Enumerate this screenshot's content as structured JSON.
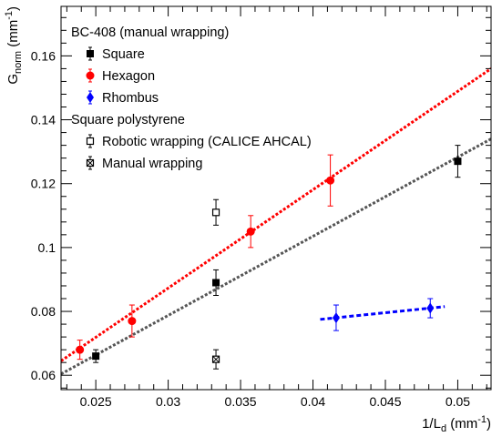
{
  "chart_data": {
    "type": "scatter",
    "xlabel": "1/L",
    "xlabel_sub": "d",
    "xlabel_unit": "(mm",
    "xlabel_unit_sup": "-1",
    "xlabel_unit_close": ")",
    "ylabel": "G",
    "ylabel_sub": "norm",
    "ylabel_unit": "(mm",
    "ylabel_unit_sup": "-1",
    "ylabel_unit_close": ")",
    "xlim": [
      0.0226,
      0.0523
    ],
    "ylim": [
      0.0555,
      0.1755
    ],
    "xticks": [
      0.025,
      0.03,
      0.035,
      0.04,
      0.045,
      0.05
    ],
    "xtick_labels": [
      "0.025",
      "0.03",
      "0.035",
      "0.04",
      "0.045",
      "0.05"
    ],
    "yticks": [
      0.06,
      0.08,
      0.1,
      0.12,
      0.14,
      0.16
    ],
    "ytick_labels": [
      "0.06",
      "0.08",
      "0.1",
      "0.12",
      "0.14",
      "0.16"
    ],
    "grid": false,
    "legend_placement": "top-left",
    "legend_groups": [
      {
        "header": "BC-408 (manual wrapping)",
        "series": [
          "Square",
          "Hexagon",
          "Rhombus"
        ]
      },
      {
        "header": "Square polystyrene",
        "series": [
          "Robotic wrapping (CALICE AHCAL)",
          "Manual wrapping"
        ]
      }
    ],
    "series": [
      {
        "name": "Square",
        "color": "#000000",
        "marker": "filled-square",
        "points": [
          {
            "x": 0.025,
            "y": 0.066,
            "err": 0.002
          },
          {
            "x": 0.0333,
            "y": 0.089,
            "err": 0.004
          },
          {
            "x": 0.05,
            "y": 0.127,
            "err": 0.005
          }
        ]
      },
      {
        "name": "Hexagon",
        "color": "#ff0000",
        "marker": "filled-circle",
        "points": [
          {
            "x": 0.0239,
            "y": 0.068,
            "err": 0.003
          },
          {
            "x": 0.0275,
            "y": 0.077,
            "err": 0.005
          },
          {
            "x": 0.0357,
            "y": 0.105,
            "err": 0.005
          },
          {
            "x": 0.0412,
            "y": 0.121,
            "err": 0.008
          }
        ]
      },
      {
        "name": "Rhombus",
        "color": "#0000ff",
        "marker": "filled-diamond",
        "points": [
          {
            "x": 0.0416,
            "y": 0.078,
            "err": 0.004
          },
          {
            "x": 0.0481,
            "y": 0.081,
            "err": 0.003
          }
        ]
      },
      {
        "name": "Robotic wrapping (CALICE AHCAL)",
        "color": "#000000",
        "marker": "open-square",
        "points": [
          {
            "x": 0.0333,
            "y": 0.111,
            "err": 0.004
          }
        ]
      },
      {
        "name": "Manual wrapping",
        "color": "#000000",
        "marker": "crossed-square",
        "points": [
          {
            "x": 0.0333,
            "y": 0.065,
            "err": 0.003
          }
        ]
      }
    ],
    "fit_lines": [
      {
        "series": "Hexagon",
        "color": "#ff0000",
        "style": "dotted",
        "x": [
          0.0226,
          0.0523
        ],
        "y": [
          0.0645,
          0.156
        ]
      },
      {
        "series": "Square",
        "color": "#555555",
        "style": "dotted",
        "x": [
          0.0226,
          0.0523
        ],
        "y": [
          0.0604,
          0.134
        ]
      },
      {
        "series": "Rhombus",
        "color": "#0000ff",
        "style": "dashed",
        "x": [
          0.0405,
          0.0491
        ],
        "y": [
          0.0775,
          0.0815
        ]
      }
    ]
  }
}
